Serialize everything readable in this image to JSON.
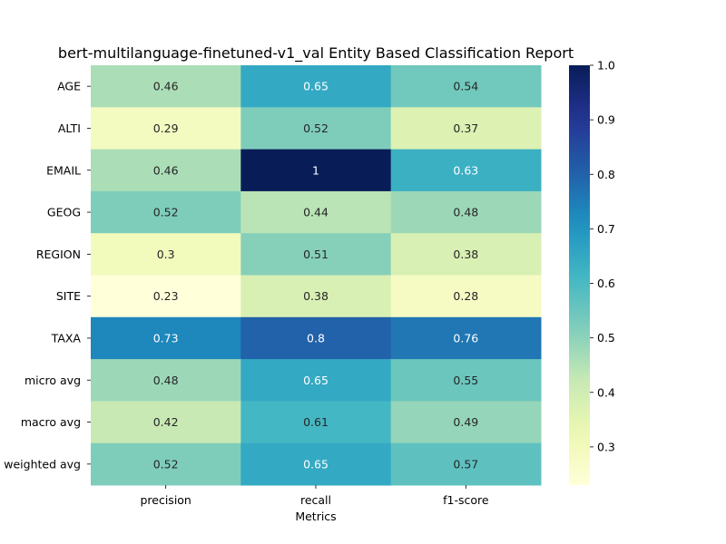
{
  "chart_data": {
    "type": "heatmap",
    "title": "bert-multilanguage-finetuned-v1_val Entity Based Classification Report",
    "xlabel": "Metrics",
    "ylabel": "",
    "columns": [
      "precision",
      "recall",
      "f1-score"
    ],
    "rows": [
      "AGE",
      "ALTI",
      "EMAIL",
      "GEOG",
      "REGION",
      "SITE",
      "TAXA",
      "micro avg",
      "macro avg",
      "weighted avg"
    ],
    "values": [
      [
        0.46,
        0.65,
        0.54
      ],
      [
        0.29,
        0.52,
        0.37
      ],
      [
        0.46,
        1,
        0.63
      ],
      [
        0.52,
        0.44,
        0.48
      ],
      [
        0.3,
        0.51,
        0.38
      ],
      [
        0.23,
        0.38,
        0.28
      ],
      [
        0.73,
        0.8,
        0.76
      ],
      [
        0.48,
        0.65,
        0.55
      ],
      [
        0.42,
        0.61,
        0.49
      ],
      [
        0.52,
        0.65,
        0.57
      ]
    ],
    "annotations": true,
    "colormap": "YlGnBu",
    "vmin": 0.23,
    "vmax": 1.0,
    "colorbar_ticks": [
      0.3,
      0.4,
      0.5,
      0.6,
      0.7,
      0.8,
      0.9,
      1.0
    ],
    "colorbar_tick_labels": [
      "0.3",
      "0.4",
      "0.5",
      "0.6",
      "0.7",
      "0.8",
      "0.9",
      "1.0"
    ],
    "grid": false,
    "colorbar_position": "right"
  }
}
